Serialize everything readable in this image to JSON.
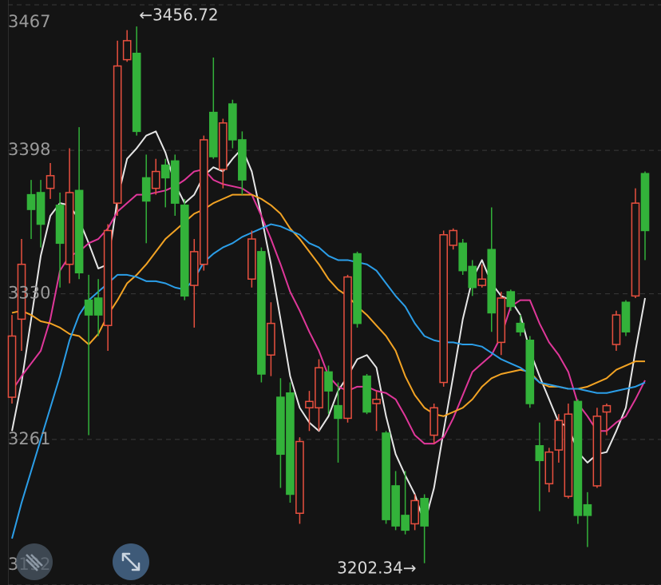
{
  "chart_data": {
    "type": "candlestick",
    "ylim": [
      3192,
      3467
    ],
    "yticks": [
      3192,
      3261,
      3330,
      3398,
      3467
    ],
    "grid": true,
    "up_color": "#e8503f",
    "down_color": "#33b23a",
    "open": [
      3281,
      3318,
      3377,
      3378,
      3380,
      3372,
      3344,
      3379,
      3327,
      3328,
      3315,
      3373,
      3441,
      3444,
      3385,
      3380,
      3391,
      3393,
      3372,
      3334,
      3344,
      3416,
      3389,
      3420,
      3403,
      3337,
      3350,
      3301,
      3281,
      3283,
      3226,
      3276,
      3276,
      3293,
      3277,
      3271,
      3349,
      3291,
      3278,
      3264,
      3239,
      3225,
      3221,
      3233,
      3263,
      3288,
      3353,
      3354,
      3343,
      3334,
      3351,
      3307,
      3331,
      3316,
      3308,
      3258,
      3240,
      3256,
      3234,
      3279,
      3230,
      3239,
      3274,
      3306,
      3326,
      3329,
      3387
    ],
    "high": [
      3320,
      3356,
      3384,
      3384,
      3392,
      3378,
      3399,
      3409,
      3339,
      3337,
      3363,
      3450,
      3455,
      3456.72,
      3396,
      3394,
      3394,
      3396,
      3375,
      3356,
      3405,
      3442,
      3413,
      3422,
      3407,
      3360,
      3352,
      3326,
      3290,
      3288,
      3262,
      3284,
      3299,
      3296,
      3288,
      3339,
      3350,
      3292,
      3284,
      3265,
      3246,
      3246,
      3235,
      3235,
      3278,
      3360,
      3361,
      3356,
      3346,
      3344,
      3371,
      3331,
      3332,
      3320,
      3310,
      3269,
      3257,
      3273,
      3278,
      3280,
      3236,
      3276,
      3278,
      3322,
      3327,
      3380,
      3388
    ],
    "low": [
      3278,
      3303,
      3356,
      3352,
      3375,
      3333,
      3335,
      3337,
      3263,
      3310,
      3303,
      3367,
      3440,
      3405,
      3354,
      3377,
      3371,
      3367,
      3327,
      3314,
      3341,
      3394,
      3380,
      3399,
      3377,
      3333,
      3288,
      3291,
      3238,
      3231,
      3221,
      3265,
      3265,
      3273,
      3250,
      3269,
      3314,
      3273,
      3265,
      3221,
      3218,
      3216,
      3218,
      3202.34,
      3259,
      3286,
      3351,
      3339,
      3329,
      3333,
      3312,
      3301,
      3322,
      3310,
      3276,
      3227,
      3236,
      3250,
      3233,
      3221,
      3210,
      3238,
      3263,
      3303,
      3310,
      3328,
      3346
    ],
    "close": [
      3310,
      3344,
      3370,
      3363,
      3386,
      3354,
      3378,
      3340,
      3320,
      3320,
      3360,
      3438,
      3450,
      3407,
      3374,
      3388,
      3385,
      3373,
      3329,
      3350,
      3403,
      3395,
      3411,
      3403,
      3384,
      3356,
      3292,
      3316,
      3254,
      3235,
      3260,
      3279,
      3295,
      3284,
      3271,
      3338,
      3316,
      3274,
      3280,
      3223,
      3220,
      3218,
      3232,
      3220,
      3276,
      3358,
      3360,
      3341,
      3333,
      3337,
      3321,
      3328,
      3324,
      3312,
      3278,
      3251,
      3255,
      3270,
      3273,
      3225,
      3225,
      3272,
      3277,
      3320,
      3312,
      3373,
      3360
    ],
    "series": [
      {
        "color": "#e6e6e6",
        "values": [
          3265,
          3288,
          3318,
          3348,
          3367,
          3373,
          3372,
          3365,
          3354,
          3342,
          3344,
          3375,
          3394,
          3399,
          3405,
          3407,
          3397,
          3382,
          3373,
          3377,
          3386,
          3390,
          3388,
          3394,
          3399,
          3388,
          3367,
          3344,
          3318,
          3291,
          3276,
          3269,
          3265,
          3272,
          3284,
          3291,
          3299,
          3301,
          3295,
          3272,
          3254,
          3244,
          3235,
          3221,
          3238,
          3265,
          3291,
          3318,
          3337,
          3346,
          3335,
          3329,
          3327,
          3320,
          3303,
          3291,
          3280,
          3269,
          3267,
          3255,
          3250,
          3254,
          3255,
          3265,
          3276,
          3303,
          3328
        ]
      },
      {
        "color": "#e0379a",
        "values": [
          3284,
          3291,
          3297,
          3303,
          3318,
          3341,
          3348,
          3350,
          3354,
          3356,
          3361,
          3369,
          3373,
          3377,
          3377,
          3378,
          3379,
          3381,
          3384,
          3388,
          3389,
          3384,
          3382,
          3381,
          3380,
          3377,
          3367,
          3356,
          3344,
          3331,
          3322,
          3312,
          3303,
          3291,
          3286,
          3284,
          3286,
          3286,
          3284,
          3283,
          3280,
          3272,
          3263,
          3259,
          3259,
          3262,
          3271,
          3282,
          3293,
          3297,
          3301,
          3310,
          3324,
          3327,
          3327,
          3316,
          3307,
          3301,
          3293,
          3278,
          3272,
          3265,
          3265,
          3269,
          3272,
          3280,
          3289
        ]
      },
      {
        "color": "#f2a324",
        "values": [
          3321,
          3322,
          3320,
          3317,
          3316,
          3314,
          3311,
          3310,
          3306,
          3311,
          3320,
          3327,
          3335,
          3339,
          3344,
          3350,
          3356,
          3360,
          3364,
          3368,
          3370,
          3373,
          3375,
          3377,
          3377,
          3377,
          3375,
          3372,
          3368,
          3361,
          3356,
          3350,
          3344,
          3337,
          3332,
          3329,
          3324,
          3320,
          3315,
          3310,
          3303,
          3291,
          3282,
          3276,
          3273,
          3272,
          3274,
          3276,
          3280,
          3286,
          3290,
          3292,
          3293,
          3294,
          3293,
          3288,
          3286,
          3286,
          3285,
          3285,
          3286,
          3288,
          3290,
          3294,
          3296,
          3298,
          3298
        ]
      },
      {
        "color": "#2b9ee8",
        "values": [
          3214,
          3231,
          3246,
          3261,
          3276,
          3291,
          3308,
          3320,
          3327,
          3331,
          3335,
          3339,
          3339,
          3338,
          3336,
          3336,
          3335,
          3333,
          3332,
          3337,
          3345,
          3349,
          3352,
          3354,
          3357,
          3359,
          3361,
          3363,
          3362,
          3360,
          3358,
          3354,
          3352,
          3348,
          3346,
          3346,
          3345,
          3344,
          3341,
          3335,
          3329,
          3324,
          3316,
          3310,
          3308,
          3307,
          3307,
          3306,
          3306,
          3305,
          3302,
          3299,
          3297,
          3295,
          3292,
          3288,
          3287,
          3286,
          3285,
          3285,
          3284,
          3283,
          3283,
          3284,
          3285,
          3286,
          3288
        ]
      }
    ],
    "high_label": "←3456.72",
    "low_label": "3202.34→"
  }
}
